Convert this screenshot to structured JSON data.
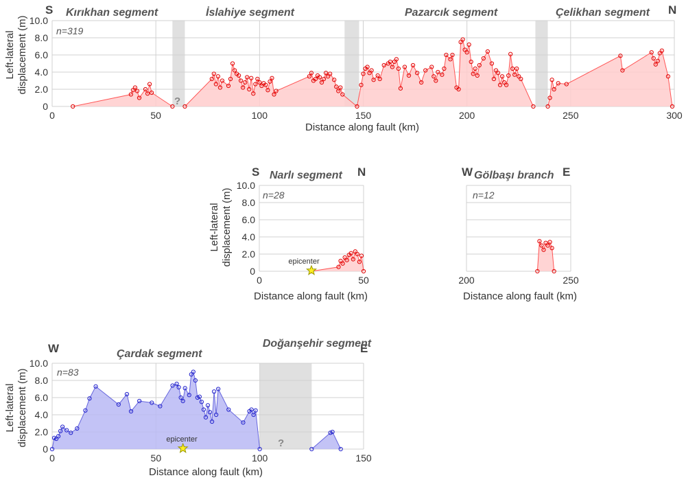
{
  "colors": {
    "red_line": "#ff5555",
    "red_fill": "#ffcccc",
    "red_point": "#e00000",
    "blue_line": "#6666dd",
    "blue_fill": "#b8b8f4",
    "blue_point": "#2222cc",
    "gap": "#e0e0e0",
    "grid": "#d0d0d0",
    "star": "#ffee22"
  },
  "common": {
    "ylabel_line1": "Left-lateral",
    "ylabel_line2": "displacement (m)",
    "xlabel": "Distance along fault (km)",
    "ytick_labels": [
      "0",
      "2.0",
      "4.0",
      "6.0",
      "8.0",
      "10.0"
    ],
    "epicenter_label": "epicenter",
    "question_mark": "?"
  },
  "chart_data": [
    {
      "type": "area",
      "id": "main",
      "direction_left": "S",
      "direction_right": "N",
      "n_label": "n=319",
      "segments": [
        "Kırıkhan segment",
        "İslahiye segment",
        "Pazarcık segment",
        "Çelikhan segment"
      ],
      "xlim": [
        0,
        300
      ],
      "ylim": [
        0,
        10
      ],
      "xtick_labels": [
        "0",
        "50",
        "100",
        "150",
        "200",
        "250",
        "300"
      ],
      "gaps_km": [
        [
          58,
          64
        ],
        [
          141,
          148
        ],
        [
          233,
          239
        ]
      ],
      "question_km": 61,
      "x": [
        10,
        38,
        39,
        40,
        41,
        42,
        45,
        46,
        47,
        48,
        58,
        64,
        77,
        78,
        79,
        80,
        81,
        82,
        85,
        86,
        87,
        88,
        89,
        90,
        91,
        92,
        93,
        94,
        95,
        96,
        97,
        98,
        99,
        100,
        101,
        102,
        103,
        104,
        105,
        106,
        107,
        108,
        124,
        125,
        126,
        127,
        128,
        129,
        130,
        131,
        132,
        133,
        134,
        136,
        137,
        138,
        139,
        140,
        147,
        149,
        150,
        151,
        152,
        153,
        154,
        155,
        157,
        158,
        160,
        162,
        163,
        164,
        165,
        166,
        167,
        168,
        170,
        172,
        174,
        176,
        178,
        180,
        183,
        184,
        185,
        186,
        188,
        189,
        190,
        192,
        193,
        195,
        196,
        197,
        198,
        199,
        200,
        201,
        202,
        203,
        204,
        205,
        206,
        208,
        210,
        212,
        213,
        214,
        215,
        216,
        217,
        218,
        219,
        220,
        221,
        222,
        223,
        224,
        225,
        226,
        232,
        239,
        240,
        241,
        242,
        244,
        248,
        274,
        275,
        289,
        290,
        291,
        292,
        293,
        294,
        297,
        299
      ],
      "y": [
        0,
        1.4,
        1.9,
        2.2,
        1.8,
        1.0,
        2.0,
        1.5,
        2.6,
        1.6,
        0,
        0,
        3.2,
        3.8,
        2.6,
        3.5,
        2.2,
        3.0,
        2.4,
        3.2,
        5.0,
        4.2,
        3.8,
        3.6,
        3.0,
        2.2,
        2.8,
        3.4,
        2.0,
        3.3,
        1.5,
        2.6,
        3.2,
        2.8,
        2.4,
        2.7,
        2.5,
        1.9,
        2.9,
        3.3,
        1.4,
        1.8,
        3.5,
        3.9,
        3.0,
        3.2,
        3.6,
        3.4,
        2.8,
        3.2,
        3.9,
        3.5,
        3.8,
        3.1,
        2.3,
        1.8,
        2.2,
        1.4,
        0,
        2.5,
        3.8,
        4.4,
        4.6,
        3.9,
        4.2,
        3.1,
        3.6,
        3.2,
        4.8,
        5.0,
        5.2,
        4.6,
        5.2,
        5.5,
        4.4,
        2.1,
        4.6,
        3.6,
        4.8,
        3.9,
        2.8,
        4.2,
        4.6,
        3.5,
        3.0,
        4.0,
        3.7,
        4.4,
        6.0,
        5.5,
        6.0,
        2.2,
        2.0,
        7.5,
        7.8,
        6.6,
        6.3,
        7.2,
        5.2,
        3.8,
        4.4,
        3.6,
        4.8,
        5.6,
        6.4,
        5.0,
        3.2,
        4.2,
        3.9,
        2.5,
        3.5,
        2.8,
        2.5,
        3.6,
        6.1,
        4.4,
        3.7,
        4.4,
        3.5,
        3.2,
        0,
        0,
        1.0,
        3.1,
        2.0,
        2.7,
        2.6,
        5.9,
        4.2,
        6.3,
        5.6,
        4.9,
        5.3,
        6.2,
        6.5,
        3.5,
        0
      ]
    },
    {
      "type": "area",
      "id": "narli",
      "direction_left": "S",
      "direction_right": "N",
      "title": "Narlı segment",
      "n_label": "n=28",
      "xlim": [
        0,
        50
      ],
      "ylim": [
        0,
        10
      ],
      "xtick_labels": [
        "0",
        "50"
      ],
      "epicenter_km": 25,
      "x": [
        25,
        38,
        39,
        40,
        41,
        42,
        43,
        44,
        45,
        46,
        47,
        48,
        49,
        50
      ],
      "y": [
        0,
        0.5,
        1.2,
        0.9,
        1.6,
        1.3,
        1.9,
        2.1,
        1.4,
        2.3,
        2.0,
        1.1,
        1.8,
        0
      ]
    },
    {
      "type": "area",
      "id": "golbasi",
      "direction_left": "W",
      "direction_right": "E",
      "title": "Gölbaşı branch",
      "n_label": "n=12",
      "xlim": [
        200,
        250
      ],
      "ylim": [
        0,
        10
      ],
      "ytick_labels": [],
      "xtick_labels": [
        "200",
        "250"
      ],
      "x": [
        234,
        235,
        236,
        237,
        238,
        239,
        240,
        241,
        242
      ],
      "y": [
        0,
        3.5,
        3.0,
        2.5,
        3.3,
        3.0,
        3.4,
        2.7,
        0
      ]
    },
    {
      "type": "area",
      "id": "cardak",
      "direction_left": "W",
      "direction_right": "E",
      "segments": [
        "Çardak segment",
        "Doğanşehir segment"
      ],
      "n_label": "n=83",
      "xlim": [
        0,
        150
      ],
      "ylim": [
        0,
        10
      ],
      "xtick_labels": [
        "0",
        "50",
        "100",
        "150"
      ],
      "gaps_km": [
        [
          100,
          125
        ]
      ],
      "question_km": 112,
      "epicenter_km": 63,
      "x": [
        0,
        1,
        2,
        3,
        4,
        5,
        7,
        9,
        12,
        16,
        18,
        21,
        32,
        36,
        38,
        42,
        48,
        52,
        58,
        60,
        61,
        62,
        63,
        64,
        66,
        67,
        68,
        69,
        70,
        71,
        72,
        73,
        74,
        75,
        76,
        77,
        78,
        79,
        80,
        85,
        92,
        95,
        96,
        97,
        98,
        100,
        125,
        134,
        135,
        139
      ],
      "y": [
        0,
        1.3,
        1.2,
        1.5,
        2.1,
        2.6,
        2.2,
        1.9,
        2.4,
        4.5,
        5.9,
        7.3,
        5.2,
        6.4,
        4.4,
        5.6,
        5.4,
        5.0,
        7.4,
        7.6,
        7.2,
        6.0,
        5.6,
        7.1,
        6.3,
        8.7,
        9.0,
        8.0,
        6.0,
        6.1,
        5.5,
        4.6,
        3.7,
        5.1,
        4.3,
        3.2,
        6.7,
        4.0,
        7.0,
        4.6,
        3.1,
        4.4,
        4.6,
        4.0,
        4.5,
        0,
        0,
        1.9,
        2.0,
        0
      ]
    }
  ]
}
